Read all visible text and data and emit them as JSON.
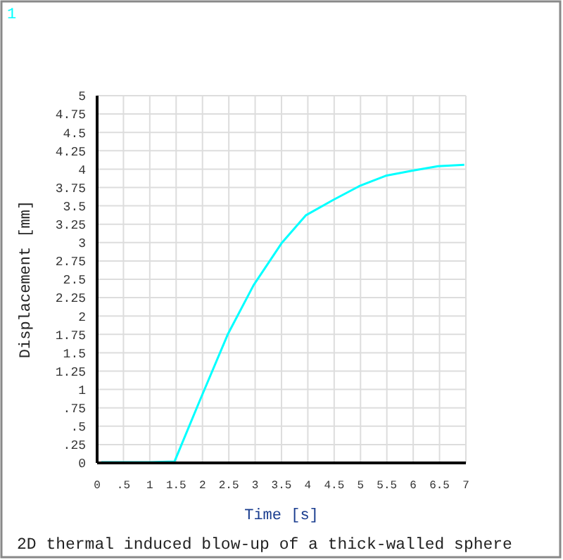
{
  "chart_data": {
    "type": "line",
    "title": "2D thermal induced blow-up of a thick-walled sphere",
    "annotations": [
      "1"
    ],
    "xlabel": "Time [s]",
    "ylabel": "Displacement [mm]",
    "x": [
      0.08,
      0.5,
      1.0,
      1.47,
      1.95,
      2.48,
      2.97,
      3.5,
      3.96,
      4.48,
      4.98,
      5.48,
      5.99,
      6.47,
      6.97
    ],
    "series": [
      {
        "color": "#00ffff",
        "values": [
          0.01,
          0.01,
          0.01,
          0.02,
          0.85,
          1.75,
          2.42,
          2.99,
          3.37,
          3.58,
          3.77,
          3.91,
          3.98,
          4.04,
          4.06
        ]
      }
    ],
    "xlim": [
      0,
      7
    ],
    "ylim": [
      0,
      5
    ],
    "xticks": [
      0,
      {
        "value": 0.5,
        "label": ".5"
      },
      1,
      1.5,
      2,
      2.5,
      3,
      3.5,
      4,
      4.5,
      5,
      5.5,
      6,
      6.5,
      7
    ],
    "yticks": [
      0,
      {
        "value": 0.25,
        "label": ".25"
      },
      {
        "value": 0.5,
        "label": ".5"
      },
      {
        "value": 0.75,
        "label": ".75"
      },
      1,
      1.25,
      1.5,
      1.75,
      2,
      2.25,
      2.5,
      2.75,
      3,
      3.25,
      3.5,
      3.75,
      4,
      4.25,
      4.5,
      4.75,
      5
    ],
    "grid": true,
    "marker": "none",
    "line_style": "solid"
  }
}
